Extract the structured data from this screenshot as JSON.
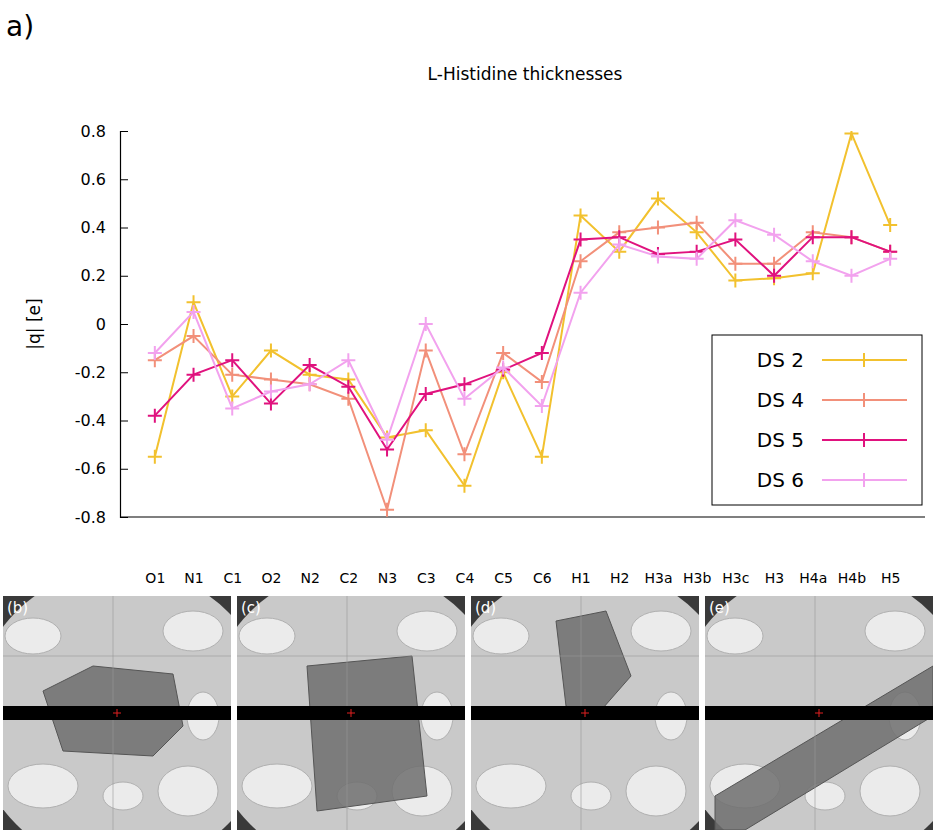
{
  "panel_label": "a)",
  "chart_data": {
    "type": "line",
    "title": "L-Histidine thicknesses",
    "y_label": "|q| [e]",
    "categories": [
      "O1",
      "N1",
      "C1",
      "O2",
      "N2",
      "C2",
      "N3",
      "C3",
      "C4",
      "C5",
      "C6",
      "H1",
      "H2",
      "H3a",
      "H3b",
      "H3c",
      "H3",
      "H4a",
      "H4b",
      "H5"
    ],
    "series": [
      {
        "name": "DS 2",
        "color": "#f2c12e",
        "marker": "plus",
        "line_style": "solid",
        "values": [
          -0.55,
          0.09,
          -0.3,
          -0.11,
          -0.21,
          -0.23,
          -0.47,
          -0.44,
          -0.67,
          -0.2,
          -0.55,
          0.45,
          0.3,
          0.52,
          0.38,
          0.18,
          0.19,
          0.21,
          0.79,
          0.41
        ]
      },
      {
        "name": "DS 4",
        "color": "#f2907a",
        "marker": "plus",
        "line_style": "solid",
        "values": [
          -0.15,
          -0.05,
          -0.21,
          -0.23,
          -0.25,
          -0.31,
          -0.77,
          -0.11,
          -0.54,
          -0.12,
          -0.24,
          0.26,
          0.38,
          0.4,
          0.42,
          0.25,
          0.25,
          0.38,
          0.36,
          0.3
        ]
      },
      {
        "name": "DS 5",
        "color": "#e0127e",
        "marker": "plus",
        "line_style": "solid",
        "values": [
          -0.38,
          -0.21,
          -0.15,
          -0.33,
          -0.17,
          -0.26,
          -0.52,
          -0.29,
          -0.25,
          -0.19,
          -0.12,
          0.35,
          0.36,
          0.29,
          0.3,
          0.35,
          0.2,
          0.36,
          0.36,
          0.3
        ]
      },
      {
        "name": "DS 6",
        "color": "#f2a2ee",
        "marker": "plus",
        "line_style": "solid",
        "values": [
          -0.12,
          0.05,
          -0.35,
          -0.28,
          -0.25,
          -0.15,
          -0.48,
          0.0,
          -0.31,
          -0.18,
          -0.34,
          0.13,
          0.33,
          0.28,
          0.27,
          0.43,
          0.37,
          0.26,
          0.2,
          0.27
        ]
      }
    ],
    "ylim": [
      -0.8,
      0.8
    ],
    "yticks": [
      -0.8,
      -0.6,
      -0.4,
      -0.2,
      0,
      0.2,
      0.4,
      0.6,
      0.8
    ],
    "grid": false,
    "legend": "lower right"
  },
  "image_panels": [
    {
      "label": "(b)"
    },
    {
      "label": "(c)"
    },
    {
      "label": "(d)"
    },
    {
      "label": "(e)"
    }
  ]
}
